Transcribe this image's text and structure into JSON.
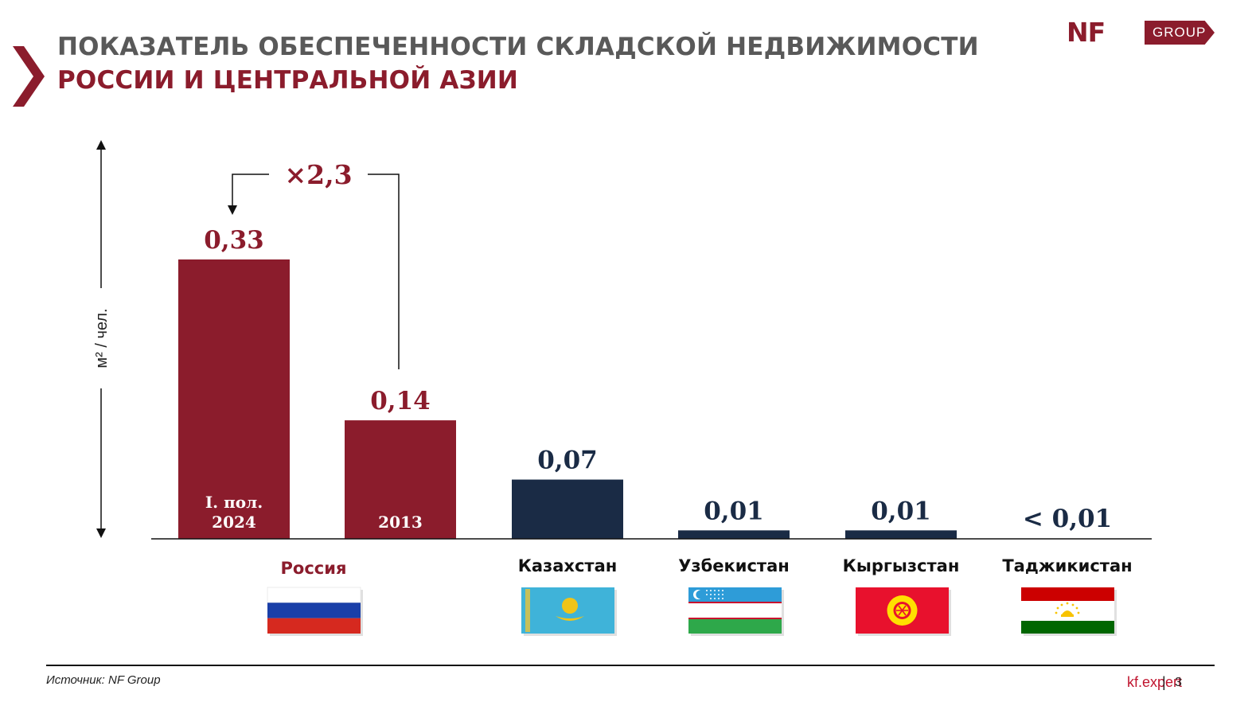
{
  "header": {
    "title_line1": "ПОКАЗАТЕЛЬ ОБЕСПЕЧЕННОСТИ СКЛАДСКОЙ НЕДВИЖИМОСТИ",
    "title_line2": "РОССИИ И ЦЕНТРАЛЬНОЙ АЗИИ",
    "logo_mark": "NF",
    "logo_group": "GROUP"
  },
  "colors": {
    "accent": "#8b1c2c",
    "navy": "#1a2b45",
    "title_gray": "#595959",
    "link_red": "#c0152f"
  },
  "chart_data": {
    "type": "bar",
    "ylabel": "м² / чел.",
    "multiplier_label": "×2,3",
    "bars": [
      {
        "country": "Россия",
        "period": "I. пол. 2024",
        "period_lines": [
          "I. пол.",
          "2024"
        ],
        "value": 0.33,
        "label": "0,33",
        "color": "#8b1c2c"
      },
      {
        "country": "Россия",
        "period": "2013",
        "period_lines": [
          "2013"
        ],
        "value": 0.14,
        "label": "0,14",
        "color": "#8b1c2c"
      },
      {
        "country": "Казахстан",
        "value": 0.07,
        "label": "0,07",
        "color": "#1a2b45"
      },
      {
        "country": "Узбекистан",
        "value": 0.01,
        "label": "0,01",
        "color": "#1a2b45"
      },
      {
        "country": "Кыргызстан",
        "value": 0.01,
        "label": "0,01",
        "color": "#1a2b45"
      },
      {
        "country": "Таджикистан",
        "value": 0.003,
        "label": "< 0,01",
        "color": "#1a2b45"
      }
    ],
    "categories": [
      "Россия",
      "Казахстан",
      "Узбекистан",
      "Кыргызстан",
      "Таджикистан"
    ],
    "flags": [
      "russia-flag",
      "kazakhstan-flag",
      "uzbekistan-flag",
      "kyrgyzstan-flag",
      "tajikistan-flag"
    ],
    "ylim": [
      0,
      0.33
    ]
  },
  "footer": {
    "source": "Источник: NF Group",
    "site": "kf.expert",
    "separator": "|",
    "page": "3"
  }
}
